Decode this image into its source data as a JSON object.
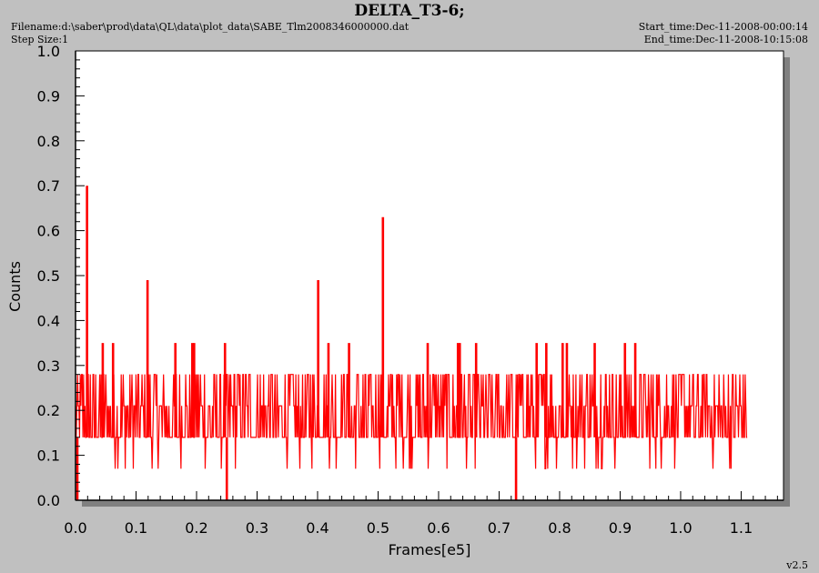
{
  "header": {
    "title": "DELTA_T3-6;",
    "filename": "Filename:d:\\saber\\prod\\data\\QL\\data\\plot_data\\SABE_Tlm2008346000000.dat",
    "step_size": "Step Size:1",
    "start_time": "Start_time:Dec-11-2008-00:00:14",
    "end_time": "End_time:Dec-11-2008-10:15:08"
  },
  "footer": {
    "version": "v2.5"
  },
  "colors": {
    "series": "#ff0000",
    "background": "#c0c0c0",
    "plot_bg": "#ffffff",
    "shadow": "#808080"
  },
  "chart_data": {
    "type": "line",
    "title": "DELTA_T3-6;",
    "xlabel": "Frames[e5]",
    "ylabel": "Counts",
    "xlim": [
      0.0,
      1.17
    ],
    "ylim": [
      0.0,
      1.0
    ],
    "x_ticks": [
      "0.0",
      "0.1",
      "0.2",
      "0.3",
      "0.4",
      "0.5",
      "0.6",
      "0.7",
      "0.8",
      "0.9",
      "1.0",
      "1.1"
    ],
    "y_ticks": [
      "0.0",
      "0.1",
      "0.2",
      "0.3",
      "0.4",
      "0.5",
      "0.6",
      "0.7",
      "0.8",
      "0.9",
      "1.0"
    ],
    "grid": false,
    "series": [
      {
        "levels": [
          0.07,
          0.14,
          0.21,
          0.28
        ],
        "x_end": 1.11,
        "spikes": [
          {
            "x": 0.019,
            "y": 0.7
          },
          {
            "x": 0.119,
            "y": 0.49
          },
          {
            "x": 0.401,
            "y": 0.49
          },
          {
            "x": 0.508,
            "y": 0.63
          },
          {
            "x": 0.045,
            "y": 0.35
          },
          {
            "x": 0.062,
            "y": 0.35
          },
          {
            "x": 0.165,
            "y": 0.35
          },
          {
            "x": 0.193,
            "y": 0.35
          },
          {
            "x": 0.196,
            "y": 0.35
          },
          {
            "x": 0.247,
            "y": 0.35
          },
          {
            "x": 0.418,
            "y": 0.35
          },
          {
            "x": 0.452,
            "y": 0.35
          },
          {
            "x": 0.582,
            "y": 0.35
          },
          {
            "x": 0.632,
            "y": 0.35
          },
          {
            "x": 0.635,
            "y": 0.35
          },
          {
            "x": 0.662,
            "y": 0.35
          },
          {
            "x": 0.762,
            "y": 0.35
          },
          {
            "x": 0.778,
            "y": 0.35
          },
          {
            "x": 0.805,
            "y": 0.35
          },
          {
            "x": 0.812,
            "y": 0.35
          },
          {
            "x": 0.858,
            "y": 0.35
          },
          {
            "x": 0.908,
            "y": 0.35
          },
          {
            "x": 0.925,
            "y": 0.35
          }
        ],
        "dips": [
          {
            "x": 0.25,
            "y": 0.0
          },
          {
            "x": 0.728,
            "y": 0.0
          },
          {
            "x": 0.003,
            "y": 0.0
          }
        ]
      }
    ]
  }
}
